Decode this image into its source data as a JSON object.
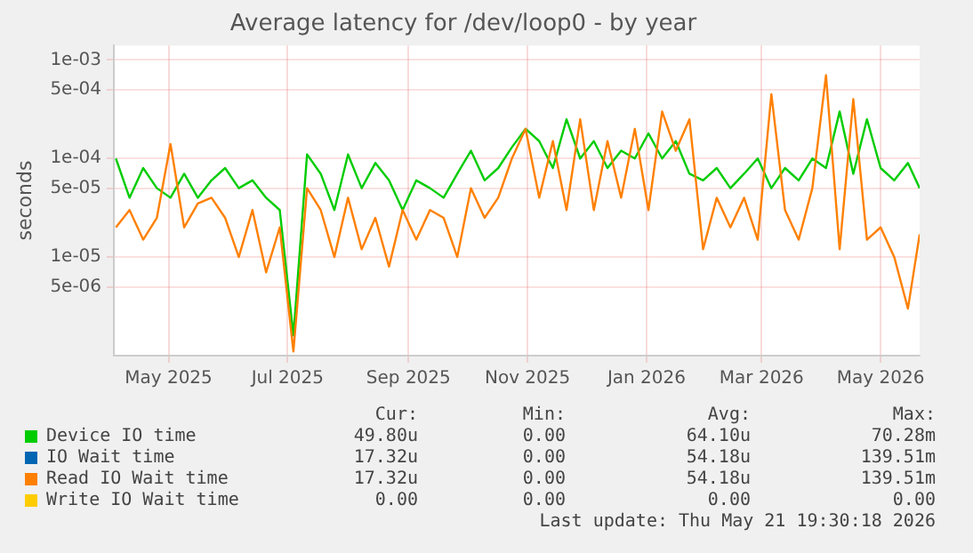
{
  "chart_data": {
    "type": "line",
    "title": "Average latency for /dev/loop0 - by year",
    "ylabel": "seconds",
    "log": "y",
    "grid": true,
    "legend": "bottom",
    "marker": "none",
    "xlim": [
      "2025-04-03",
      "2026-05-21"
    ],
    "xticks": [
      {
        "value": "2025-05-01",
        "label": "May 2025"
      },
      {
        "value": "2025-07-01",
        "label": "Jul 2025"
      },
      {
        "value": "2025-09-01",
        "label": "Sep 2025"
      },
      {
        "value": "2025-11-01",
        "label": "Nov 2025"
      },
      {
        "value": "2026-01-01",
        "label": "Jan 2026"
      },
      {
        "value": "2026-03-01",
        "label": "Mar 2026"
      },
      {
        "value": "2026-05-01",
        "label": "May 2026"
      }
    ],
    "ylim": [
      1e-06,
      0.0014
    ],
    "yticks": [
      {
        "value": 5e-06,
        "label": "5e-06"
      },
      {
        "value": 1e-05,
        "label": "1e-05"
      },
      {
        "value": 5e-05,
        "label": "5e-05"
      },
      {
        "value": 0.0001,
        "label": "1e-04"
      },
      {
        "value": 0.0005,
        "label": "5e-04"
      },
      {
        "value": 0.001,
        "label": "1e-03"
      }
    ],
    "x": [
      "2025-04-04",
      "2025-04-11",
      "2025-04-18",
      "2025-04-25",
      "2025-05-02",
      "2025-05-09",
      "2025-05-16",
      "2025-05-23",
      "2025-05-30",
      "2025-06-06",
      "2025-06-13",
      "2025-06-20",
      "2025-06-27",
      "2025-07-04",
      "2025-07-11",
      "2025-07-18",
      "2025-07-25",
      "2025-08-01",
      "2025-08-08",
      "2025-08-15",
      "2025-08-22",
      "2025-08-29",
      "2025-09-05",
      "2025-09-12",
      "2025-09-19",
      "2025-09-26",
      "2025-10-03",
      "2025-10-10",
      "2025-10-17",
      "2025-10-24",
      "2025-10-31",
      "2025-11-07",
      "2025-11-14",
      "2025-11-21",
      "2025-11-28",
      "2025-12-05",
      "2025-12-12",
      "2025-12-19",
      "2025-12-26",
      "2026-01-02",
      "2026-01-09",
      "2026-01-16",
      "2026-01-23",
      "2026-01-30",
      "2026-02-06",
      "2026-02-13",
      "2026-02-20",
      "2026-02-27",
      "2026-03-06",
      "2026-03-13",
      "2026-03-20",
      "2026-03-27",
      "2026-04-03",
      "2026-04-10",
      "2026-04-17",
      "2026-04-24",
      "2026-05-01",
      "2026-05-08",
      "2026-05-15",
      "2026-05-21"
    ],
    "series": [
      {
        "name": "Device IO time",
        "color": "#00cc00",
        "values": [
          0.0001,
          4e-05,
          8e-05,
          5e-05,
          4e-05,
          7e-05,
          4e-05,
          6e-05,
          8e-05,
          5e-05,
          6e-05,
          4e-05,
          3e-05,
          1.6e-06,
          0.00011,
          7e-05,
          3e-05,
          0.00011,
          5e-05,
          9e-05,
          6e-05,
          3e-05,
          6e-05,
          5e-05,
          4e-05,
          7e-05,
          0.00012,
          6e-05,
          8e-05,
          0.00013,
          0.0002,
          0.00015,
          8e-05,
          0.00025,
          0.0001,
          0.00015,
          8e-05,
          0.00012,
          0.0001,
          0.00018,
          0.0001,
          0.00015,
          7e-05,
          6e-05,
          8e-05,
          5e-05,
          7e-05,
          0.0001,
          5e-05,
          8e-05,
          6e-05,
          0.0001,
          8e-05,
          0.0003,
          7e-05,
          0.00025,
          8e-05,
          6e-05,
          9e-05,
          5e-05
        ]
      },
      {
        "name": "IO Wait time",
        "color": "#0066b3",
        "values": [
          null,
          null,
          null,
          null,
          null,
          null,
          null,
          null,
          null,
          null,
          null,
          null,
          null,
          null,
          null,
          null,
          null,
          null,
          null,
          null,
          null,
          null,
          null,
          null,
          null,
          null,
          null,
          null,
          null,
          null,
          null,
          null,
          null,
          null,
          null,
          null,
          null,
          null,
          null,
          null,
          null,
          null,
          null,
          null,
          null,
          null,
          null,
          null,
          null,
          null,
          null,
          null,
          null,
          null,
          null,
          null,
          null,
          null,
          null,
          null
        ]
      },
      {
        "name": "Read IO Wait time",
        "color": "#ff8000",
        "values": [
          2e-05,
          3e-05,
          1.5e-05,
          2.5e-05,
          0.00014,
          2e-05,
          3.5e-05,
          4e-05,
          2.5e-05,
          1e-05,
          3e-05,
          7e-06,
          2e-05,
          1.1e-06,
          5e-05,
          3e-05,
          1e-05,
          4e-05,
          1.2e-05,
          2.5e-05,
          8e-06,
          3e-05,
          1.5e-05,
          3e-05,
          2.5e-05,
          1e-05,
          5e-05,
          2.5e-05,
          4e-05,
          0.0001,
          0.0002,
          4e-05,
          0.00015,
          3e-05,
          0.00025,
          3e-05,
          0.00015,
          4e-05,
          0.0002,
          3e-05,
          0.0003,
          0.00012,
          0.00025,
          1.2e-05,
          4e-05,
          2e-05,
          4e-05,
          1.5e-05,
          0.00045,
          3e-05,
          1.5e-05,
          5e-05,
          0.0007,
          1.2e-05,
          0.0004,
          1.5e-05,
          2e-05,
          1e-05,
          3e-06,
          1.7e-05
        ]
      },
      {
        "name": "Write IO Wait time",
        "color": "#ffcc00",
        "values": [
          null,
          null,
          null,
          null,
          null,
          null,
          null,
          null,
          null,
          null,
          null,
          null,
          null,
          null,
          null,
          null,
          null,
          null,
          null,
          null,
          null,
          null,
          null,
          null,
          null,
          null,
          null,
          null,
          null,
          null,
          null,
          null,
          null,
          null,
          null,
          null,
          null,
          null,
          null,
          null,
          null,
          null,
          null,
          null,
          null,
          null,
          null,
          null,
          null,
          null,
          null,
          null,
          null,
          null,
          null,
          null,
          null,
          null,
          null,
          null
        ]
      }
    ],
    "annotations": [
      "Cur:",
      "Min:",
      "Avg:",
      "Max:",
      "49.80u",
      "0.00",
      "64.10u",
      "70.28m",
      "17.32u",
      "0.00",
      "54.18u",
      "139.51m",
      "17.32u",
      "0.00",
      "54.18u",
      "139.51m",
      "0.00",
      "0.00",
      "0.00",
      "0.00",
      "Last update: Thu May 21 19:30:18 2026"
    ]
  }
}
